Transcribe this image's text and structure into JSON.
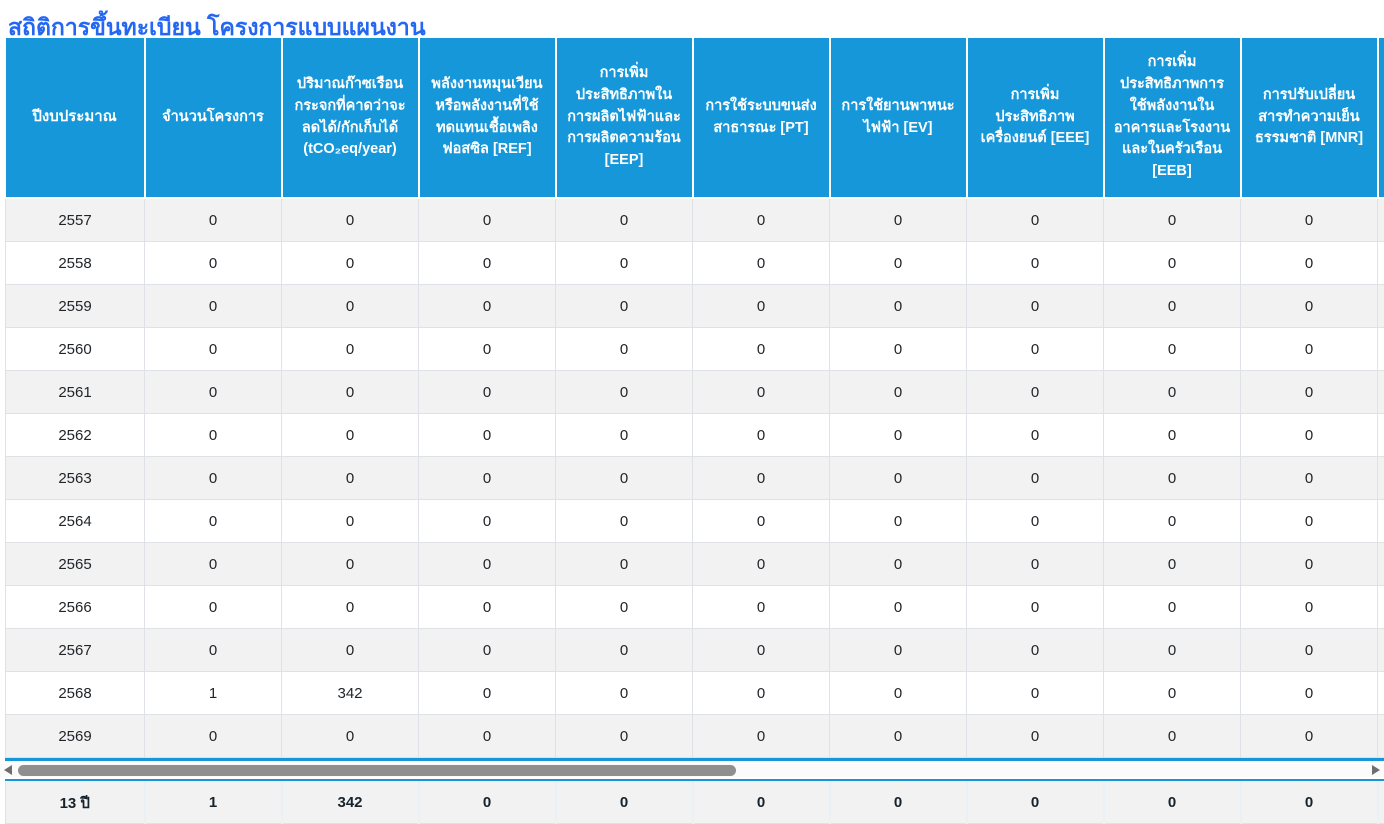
{
  "page": {
    "title": "สถิติการขึ้นทะเบียน โครงการแบบแผนงาน"
  },
  "colors": {
    "header_blue": "#1697d9",
    "title_blue": "#2467f2",
    "row_stripe": "#f2f2f2",
    "cell_border": "#dee2e6",
    "body_text": "#212529",
    "summary_text": "#17232c",
    "scrollbar_thumb": "#8f8f8f",
    "scrollbar_arrow": "#6f6f6f"
  },
  "icons": {
    "scrollbar_left": "left-triangle-arrow",
    "scrollbar_right": "right-triangle-arrow"
  },
  "table": {
    "columns": [
      "ปีงบประมาณ",
      "จำนวนโครงการ",
      "ปริมาณก๊าซเรือนกระจกที่คาดว่าจะลดได้/กักเก็บได้ (tCO₂eq/year)",
      "พลังงานหมุนเวียนหรือพลังงานที่ใช้ทดแทนเชื้อเพลิงฟอสซิล [REF]",
      "การเพิ่มประสิทธิภาพในการผลิตไฟฟ้าและการผลิตความร้อน [EEP]",
      "การใช้ระบบขนส่งสาธารณะ [PT]",
      "การใช้ยานพาหนะไฟฟ้า [EV]",
      "การเพิ่มประสิทธิภาพเครื่องยนต์ [EEE]",
      "การเพิ่มประสิทธิภาพการใช้พลังงานในอาคารและโรงงานและในครัวเรือน [EEB]",
      "การปรับเปลี่ยนสารทำความเย็นธรรมชาติ [MNR]",
      ""
    ],
    "rows": [
      [
        "2557",
        "0",
        "0",
        "0",
        "0",
        "0",
        "0",
        "0",
        "0",
        "0"
      ],
      [
        "2558",
        "0",
        "0",
        "0",
        "0",
        "0",
        "0",
        "0",
        "0",
        "0"
      ],
      [
        "2559",
        "0",
        "0",
        "0",
        "0",
        "0",
        "0",
        "0",
        "0",
        "0"
      ],
      [
        "2560",
        "0",
        "0",
        "0",
        "0",
        "0",
        "0",
        "0",
        "0",
        "0"
      ],
      [
        "2561",
        "0",
        "0",
        "0",
        "0",
        "0",
        "0",
        "0",
        "0",
        "0"
      ],
      [
        "2562",
        "0",
        "0",
        "0",
        "0",
        "0",
        "0",
        "0",
        "0",
        "0"
      ],
      [
        "2563",
        "0",
        "0",
        "0",
        "0",
        "0",
        "0",
        "0",
        "0",
        "0"
      ],
      [
        "2564",
        "0",
        "0",
        "0",
        "0",
        "0",
        "0",
        "0",
        "0",
        "0"
      ],
      [
        "2565",
        "0",
        "0",
        "0",
        "0",
        "0",
        "0",
        "0",
        "0",
        "0"
      ],
      [
        "2566",
        "0",
        "0",
        "0",
        "0",
        "0",
        "0",
        "0",
        "0",
        "0"
      ],
      [
        "2567",
        "0",
        "0",
        "0",
        "0",
        "0",
        "0",
        "0",
        "0",
        "0"
      ],
      [
        "2568",
        "1",
        "342",
        "0",
        "0",
        "0",
        "0",
        "0",
        "0",
        "0"
      ],
      [
        "2569",
        "0",
        "0",
        "0",
        "0",
        "0",
        "0",
        "0",
        "0",
        "0"
      ]
    ],
    "summary": [
      "13 ปี",
      "1",
      "342",
      "0",
      "0",
      "0",
      "0",
      "0",
      "0",
      "0"
    ]
  }
}
